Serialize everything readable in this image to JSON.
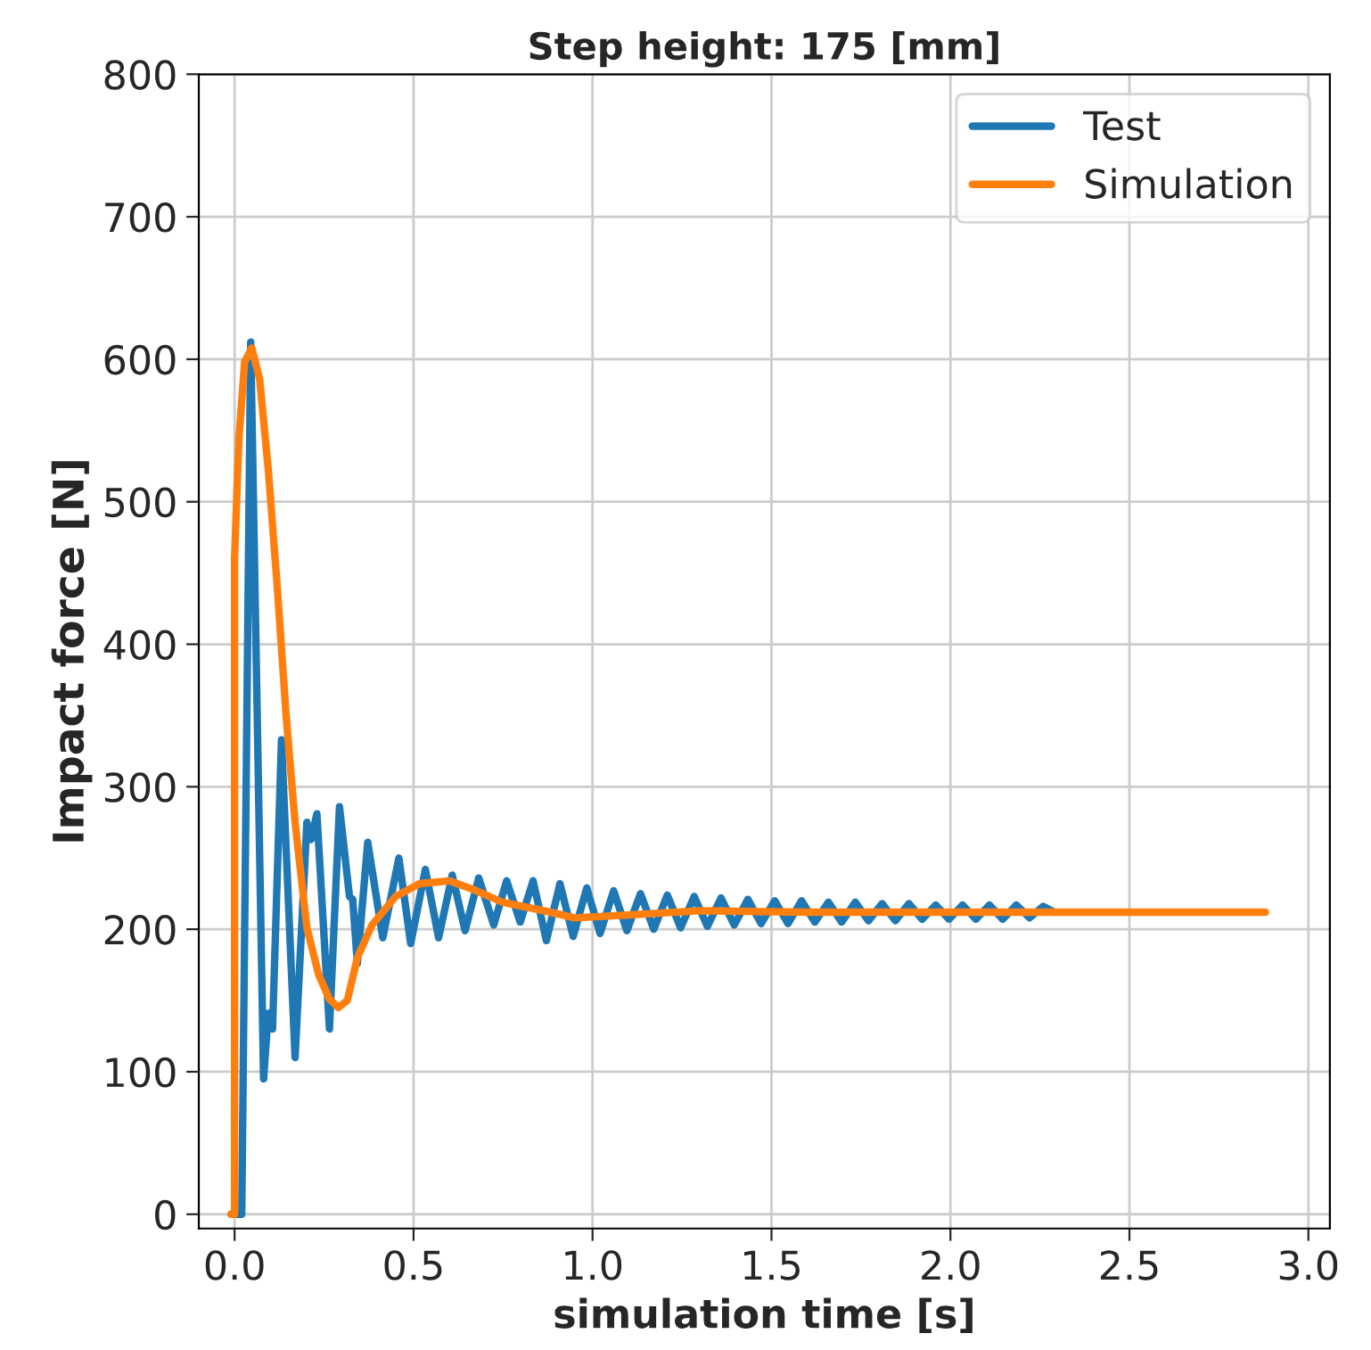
{
  "chart_data": {
    "type": "line",
    "title": "Step height: 175 [mm]",
    "xlabel": "simulation time [s]",
    "ylabel": "Impact force [N]",
    "xlim": [
      -0.1,
      3.06
    ],
    "ylim": [
      -10,
      800
    ],
    "xticks": [
      {
        "value": 0,
        "label": "0.0"
      },
      0.5,
      {
        "value": 1,
        "label": "1.0"
      },
      1.5,
      {
        "value": 2,
        "label": "2.0"
      },
      2.5,
      {
        "value": 3,
        "label": "3.0"
      }
    ],
    "yticks": [
      0,
      100,
      200,
      300,
      400,
      500,
      600,
      700,
      800
    ],
    "grid": true,
    "legend": "top right",
    "line_style": "solid",
    "marker": "none",
    "series": [
      {
        "name": "Test",
        "color": "#1f77b4",
        "x": [
          -0.01,
          0.02,
          0.045,
          0.081,
          0.094,
          0.106,
          0.131,
          0.169,
          0.202,
          0.214,
          0.23,
          0.265,
          0.293,
          0.321,
          0.33,
          0.343,
          0.372,
          0.414,
          0.459,
          0.492,
          0.533,
          0.57,
          0.608,
          0.644,
          0.682,
          0.724,
          0.76,
          0.798,
          0.834,
          0.871,
          0.909,
          0.946,
          0.984,
          1.021,
          1.059,
          1.096,
          1.134,
          1.171,
          1.209,
          1.246,
          1.284,
          1.321,
          1.359,
          1.396,
          1.434,
          1.471,
          1.509,
          1.546,
          1.584,
          1.621,
          1.659,
          1.696,
          1.734,
          1.771,
          1.809,
          1.846,
          1.884,
          1.921,
          1.959,
          1.996,
          2.034,
          2.071,
          2.109,
          2.146,
          2.184,
          2.221,
          2.259,
          2.29
        ],
        "values": [
          0,
          0,
          612,
          95,
          141,
          130,
          333,
          110,
          275,
          263,
          281,
          130,
          286,
          223,
          221,
          176,
          261,
          194,
          250,
          190,
          242,
          194,
          238,
          199,
          236,
          203,
          234,
          205,
          234,
          192,
          232,
          195,
          229,
          197,
          227,
          199,
          225,
          200,
          224,
          201,
          223,
          202,
          222,
          203,
          221,
          204,
          220,
          204,
          220,
          205,
          219,
          205,
          219,
          206,
          218,
          206,
          218,
          207,
          217,
          207,
          217,
          207,
          217,
          207,
          217,
          208,
          216,
          212
        ]
      },
      {
        "name": "Simulation",
        "color": "#ff7f0e",
        "x": [
          -0.01,
          0.0,
          0.0,
          0.012,
          0.028,
          0.048,
          0.07,
          0.094,
          0.119,
          0.144,
          0.169,
          0.202,
          0.235,
          0.265,
          0.29,
          0.315,
          0.343,
          0.384,
          0.45,
          0.517,
          0.6,
          0.666,
          0.748,
          0.864,
          0.95,
          1.1,
          1.3,
          1.6,
          2.0,
          2.5,
          2.88
        ],
        "values": [
          0,
          0,
          461,
          544,
          598,
          608,
          586,
          523,
          441,
          350,
          275,
          201,
          168,
          151,
          145,
          150,
          180,
          203,
          223,
          232,
          234,
          228,
          219,
          213,
          208,
          210,
          213,
          212,
          212,
          212,
          212
        ]
      }
    ]
  }
}
